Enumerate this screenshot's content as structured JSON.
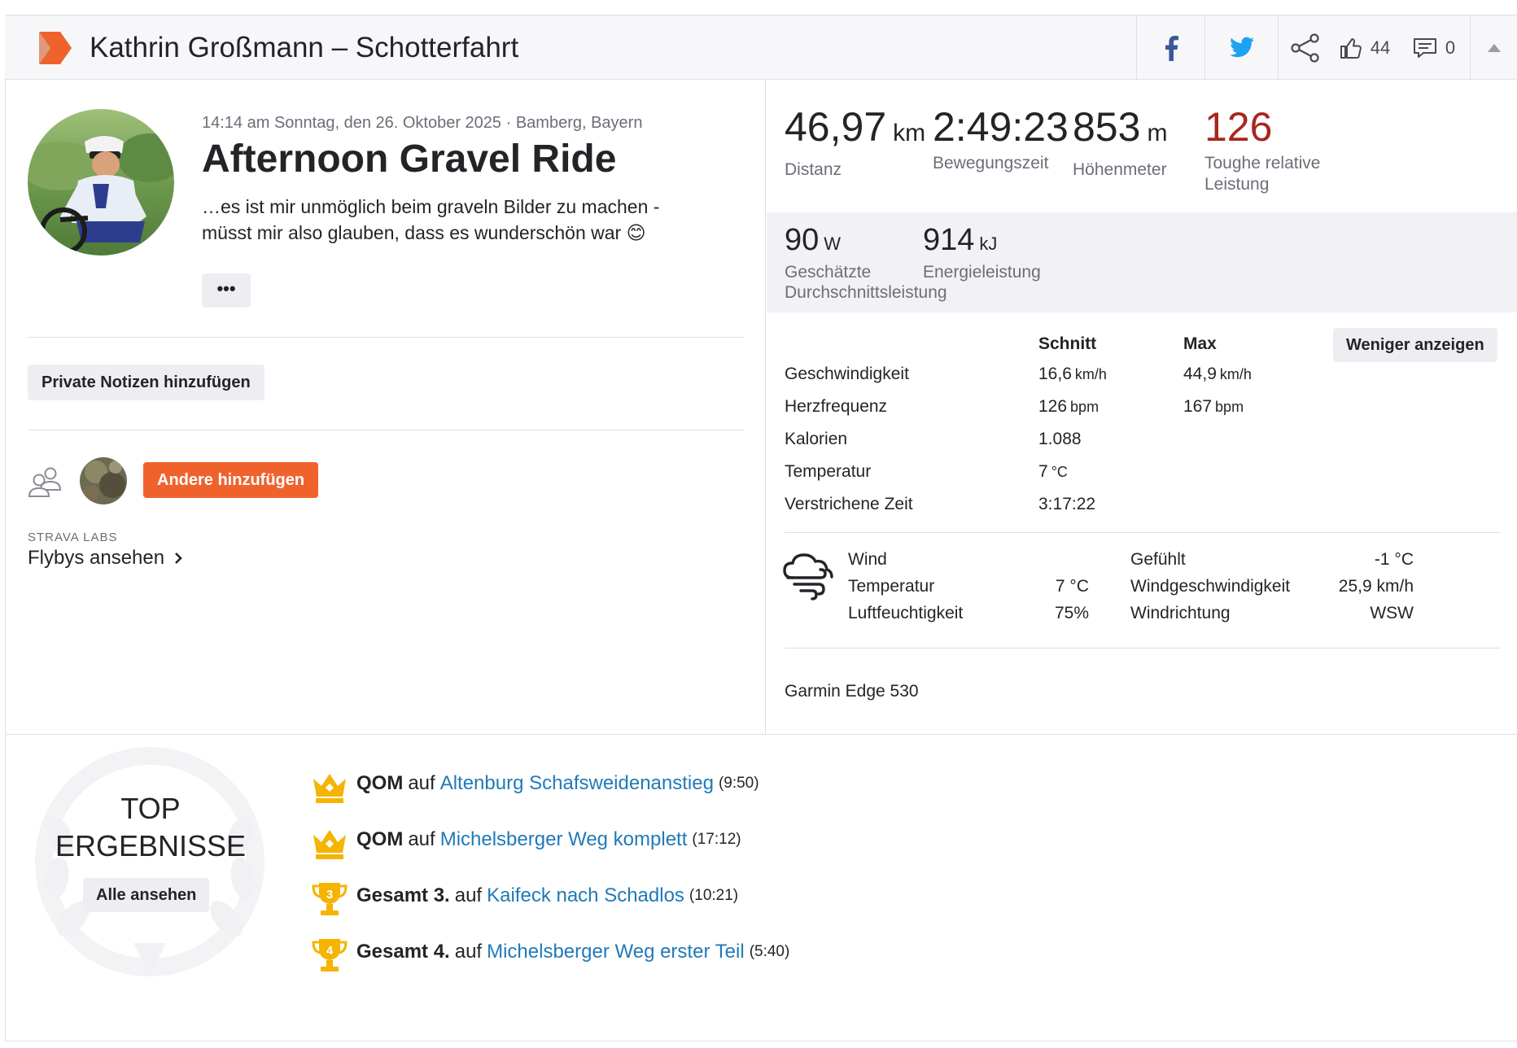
{
  "header": {
    "title": "Kathrin Großmann – Schotterfahrt",
    "kudos_count": "44",
    "comments_count": "0",
    "icons": [
      "strava-logo",
      "facebook-icon",
      "twitter-icon",
      "share-icon",
      "thumbs-up-icon",
      "comment-icon",
      "chevron-up-icon"
    ],
    "colors": {
      "brand": "#fc5200",
      "facebook": "#3b5998",
      "twitter": "#1da1f2"
    }
  },
  "activity": {
    "meta": "14:14 am Sonntag, den 26. Oktober 2025 · Bamberg, Bayern",
    "name": "Afternoon Gravel Ride",
    "description_line1": "…es ist mir unmöglich beim graveln Bilder zu machen -",
    "description_line2": "müsst mir also glauben, dass es wunderschön war 😊",
    "more_label": "•••",
    "private_notes_label": "Private Notizen hinzufügen",
    "add_others_label": "Andere hinzufügen",
    "labs_label": "STRAVA LABS",
    "flybys_label": "Flybys ansehen"
  },
  "primary_stats": [
    {
      "value": "46,97",
      "unit": "km",
      "label": "Distanz"
    },
    {
      "value": "2:49:23",
      "unit": "",
      "label": "Bewegungszeit"
    },
    {
      "value": "853",
      "unit": "m",
      "label": "Höhenmeter"
    },
    {
      "value": "126",
      "unit": "",
      "label_line1": "Toughe relative",
      "label_line2": "Leistung",
      "color": "#a8261e"
    }
  ],
  "secondary_stats": [
    {
      "value": "90",
      "unit": "W",
      "label_line1": "Geschätzte",
      "label_line2": "Durchschnittsleistung"
    },
    {
      "value": "914",
      "unit": "kJ",
      "label": "Energieleistung"
    }
  ],
  "more_stats": {
    "less_label": "Weniger anzeigen",
    "headers": {
      "avg": "Schnitt",
      "max": "Max"
    },
    "rows": [
      {
        "label": "Geschwindigkeit",
        "avg": "16,6",
        "avg_unit": "km/h",
        "max": "44,9",
        "max_unit": "km/h"
      },
      {
        "label": "Herzfrequenz",
        "avg": "126",
        "avg_unit": "bpm",
        "max": "167",
        "max_unit": "bpm"
      },
      {
        "label": "Kalorien",
        "avg": "1.088",
        "avg_unit": "",
        "max": "",
        "max_unit": ""
      },
      {
        "label": "Temperatur",
        "avg": "7",
        "avg_unit": "°C",
        "max": "",
        "max_unit": ""
      },
      {
        "label": "Verstrichene Zeit",
        "avg": "3:17:22",
        "avg_unit": "",
        "max": "",
        "max_unit": ""
      }
    ]
  },
  "weather": {
    "rows": [
      {
        "l1": "Wind",
        "v1": "",
        "l2": "Gefühlt",
        "v2": "-1 °C"
      },
      {
        "l1": "Temperatur",
        "v1": "7 °C",
        "l2": "Windgeschwindigkeit",
        "v2": "25,9 km/h"
      },
      {
        "l1": "Luftfeuchtigkeit",
        "v1": "75%",
        "l2": "Windrichtung",
        "v2": "WSW"
      }
    ]
  },
  "device": "Garmin Edge 530",
  "top_results": {
    "title_line1": "TOP",
    "title_line2": "ERGEBNISSE",
    "see_all_label": "Alle ansehen",
    "on_word": "auf",
    "items": [
      {
        "icon": "crown-icon",
        "rank": "QOM",
        "segment": "Altenburg Schafsweidenanstieg",
        "time": "(9:50)"
      },
      {
        "icon": "crown-icon",
        "rank": "QOM",
        "segment": "Michelsberger Weg komplett",
        "time": "(17:12)"
      },
      {
        "icon": "trophy-icon",
        "trophy_number": "3",
        "rank": "Gesamt 3.",
        "segment": "Kaifeck nach Schadlos",
        "time": "(10:21)"
      },
      {
        "icon": "trophy-icon",
        "trophy_number": "4",
        "rank": "Gesamt 4.",
        "segment": "Michelsberger Weg erster Teil",
        "time": "(5:40)"
      }
    ],
    "colors": {
      "link": "#1f7ab8",
      "gold": "#f5b400"
    }
  }
}
